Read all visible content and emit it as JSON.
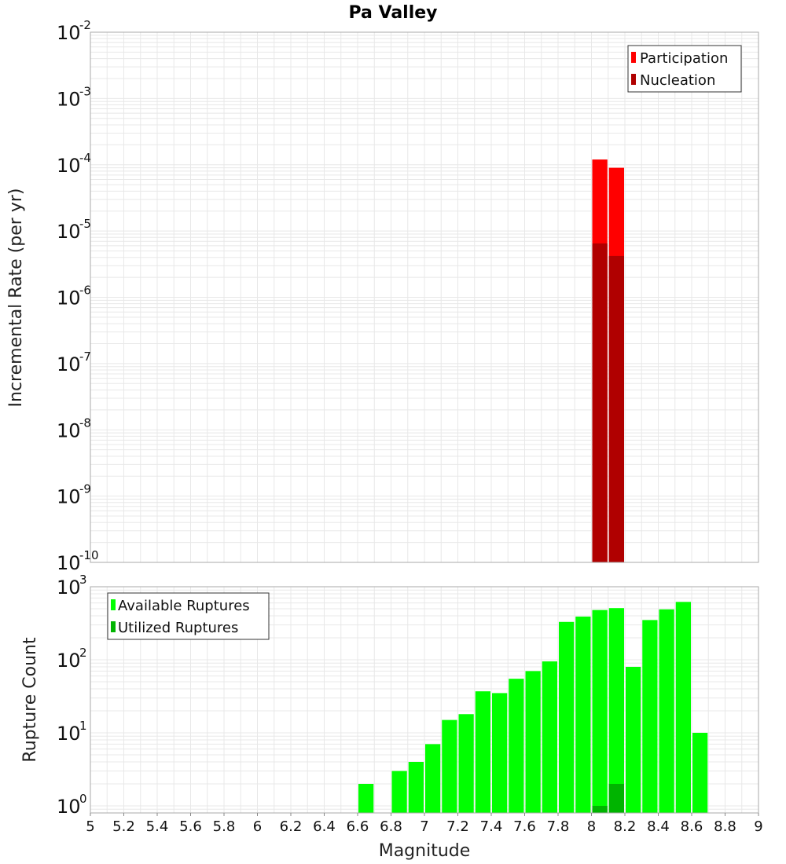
{
  "title": "Pa Valley",
  "colors": {
    "participation": "#ff0000",
    "nucleation": "#b00000",
    "available": "#00ff00",
    "utilized": "#00b400",
    "grid": "#e8e8e8",
    "border": "#aaaaaa"
  },
  "chart_data": [
    {
      "type": "bar",
      "title": "Pa Valley",
      "xlabel": "",
      "ylabel": "Incremental Rate (per yr)",
      "yscale": "log",
      "ylim": [
        1e-10,
        0.01
      ],
      "xlim": [
        5,
        9
      ],
      "bar_width": 0.1,
      "legend_position": "top-right",
      "y_tick_exponents": [
        "-2",
        "-3",
        "-4",
        "-5",
        "-6",
        "-7",
        "-8",
        "-9",
        "-10"
      ],
      "series": [
        {
          "name": "Participation",
          "x": [
            8.05,
            8.15
          ],
          "values": [
            0.00012,
            9e-05
          ]
        },
        {
          "name": "Nucleation",
          "x": [
            8.05,
            8.15
          ],
          "values": [
            6.5e-06,
            4.2e-06
          ]
        }
      ]
    },
    {
      "type": "bar",
      "xlabel": "Magnitude",
      "ylabel": "Rupture Count",
      "yscale": "log",
      "ylim": [
        0.8,
        1000
      ],
      "xlim": [
        5,
        9
      ],
      "bar_width": 0.1,
      "legend_position": "top-left",
      "y_tick_exponents": [
        "3",
        "2",
        "1",
        "0"
      ],
      "x_tick_labels": [
        "5",
        "5.2",
        "5.4",
        "5.6",
        "5.8",
        "6",
        "6.2",
        "6.4",
        "6.6",
        "6.8",
        "7",
        "7.2",
        "7.4",
        "7.6",
        "7.8",
        "8",
        "8.2",
        "8.4",
        "8.6",
        "8.8",
        "9"
      ],
      "series": [
        {
          "name": "Available Ruptures",
          "x": [
            6.65,
            6.85,
            6.95,
            7.05,
            7.15,
            7.25,
            7.35,
            7.45,
            7.55,
            7.65,
            7.75,
            7.85,
            7.95,
            8.05,
            8.15,
            8.25,
            8.35,
            8.45,
            8.55,
            8.65
          ],
          "values": [
            2,
            3,
            4,
            7,
            15,
            18,
            37,
            35,
            55,
            70,
            95,
            330,
            390,
            480,
            510,
            80,
            350,
            490,
            620,
            10
          ]
        },
        {
          "name": "Utilized Ruptures",
          "x": [
            8.05,
            8.15
          ],
          "values": [
            1,
            2
          ]
        }
      ]
    }
  ]
}
